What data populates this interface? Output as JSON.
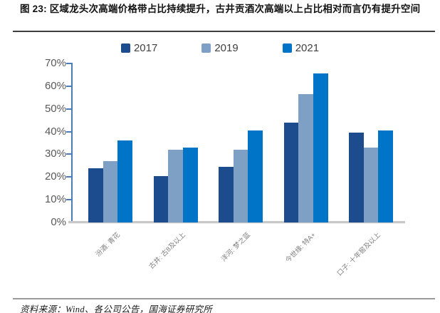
{
  "figure": {
    "title": "图 23:  区域龙头次高端价格带占比持续提升，古井贡酒次高端以上占比相对而言仍有提升空间",
    "source": "资料来源：Wind、各公司公告，国海证券研究所"
  },
  "chart_data": {
    "type": "bar",
    "title": "图 23: 区域龙头次高端价格带占比持续提升，古井贡酒次高端以上占比相对而言仍有提升空间",
    "categories": [
      "汾酒: 青花",
      "古井: 古8及以上",
      "洋河: 梦之蓝",
      "今世缘: 特A+",
      "口子: 十年窖及以上"
    ],
    "series": [
      {
        "name": "2017",
        "color": "#1c4b8e",
        "values": [
          24,
          20.5,
          24.5,
          44,
          39.5
        ]
      },
      {
        "name": "2019",
        "color": "#7da0c4",
        "values": [
          27,
          32,
          32,
          56.5,
          33
        ]
      },
      {
        "name": "2021",
        "color": "#0075c8",
        "values": [
          36,
          33,
          40.5,
          65.5,
          40.5
        ]
      }
    ],
    "ylabel": "",
    "xlabel": "",
    "ylim": [
      0,
      70
    ],
    "yticks": [
      "0%",
      "10%",
      "20%",
      "30%",
      "40%",
      "50%",
      "60%",
      "70%"
    ],
    "legend_position": "top",
    "grid": false,
    "axis_color": "#4a7ebb",
    "baseline_color": "#c9c9c9"
  }
}
